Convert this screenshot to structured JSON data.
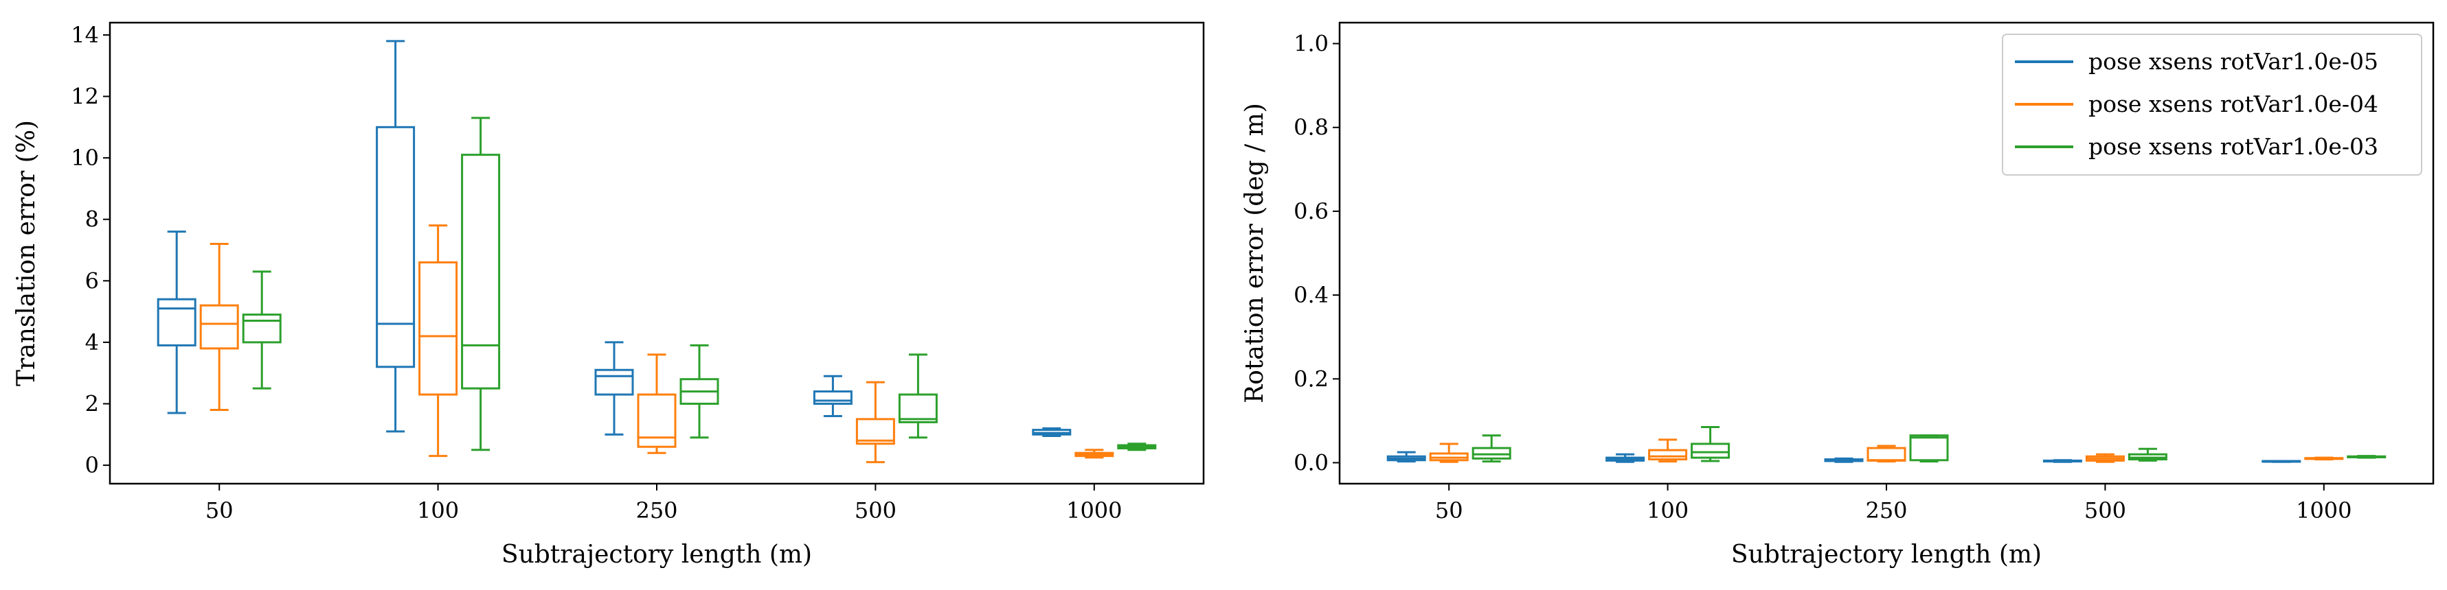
{
  "chart_data": [
    {
      "type": "box",
      "xlabel": "Subtrajectory length (m)",
      "ylabel": "Translation error (%)",
      "ylim": [
        -0.6,
        14.4
      ],
      "yticks": [
        0,
        2,
        4,
        6,
        8,
        10,
        12,
        14
      ],
      "categories": [
        "50",
        "100",
        "250",
        "500",
        "1000"
      ],
      "series": [
        {
          "name": "pose xsens rotVar1.0e-05",
          "boxes": [
            {
              "wlo": 1.7,
              "q1": 3.9,
              "med": 5.1,
              "q3": 5.4,
              "whi": 7.6
            },
            {
              "wlo": 1.1,
              "q1": 3.2,
              "med": 4.6,
              "q3": 11.0,
              "whi": 13.8
            },
            {
              "wlo": 1.0,
              "q1": 2.3,
              "med": 2.9,
              "q3": 3.1,
              "whi": 4.0
            },
            {
              "wlo": 1.6,
              "q1": 2.0,
              "med": 2.1,
              "q3": 2.4,
              "whi": 2.9
            },
            {
              "wlo": 0.95,
              "q1": 1.0,
              "med": 1.05,
              "q3": 1.15,
              "whi": 1.2
            }
          ]
        },
        {
          "name": "pose xsens rotVar1.0e-04",
          "boxes": [
            {
              "wlo": 1.8,
              "q1": 3.8,
              "med": 4.6,
              "q3": 5.2,
              "whi": 7.2
            },
            {
              "wlo": 0.3,
              "q1": 2.3,
              "med": 4.2,
              "q3": 6.6,
              "whi": 7.8
            },
            {
              "wlo": 0.4,
              "q1": 0.6,
              "med": 0.9,
              "q3": 2.3,
              "whi": 3.6
            },
            {
              "wlo": 0.1,
              "q1": 0.7,
              "med": 0.8,
              "q3": 1.5,
              "whi": 2.7
            },
            {
              "wlo": 0.25,
              "q1": 0.3,
              "med": 0.35,
              "q3": 0.4,
              "whi": 0.5
            }
          ]
        },
        {
          "name": "pose xsens rotVar1.0e-03",
          "boxes": [
            {
              "wlo": 2.5,
              "q1": 4.0,
              "med": 4.7,
              "q3": 4.9,
              "whi": 6.3
            },
            {
              "wlo": 0.5,
              "q1": 2.5,
              "med": 3.9,
              "q3": 10.1,
              "whi": 11.3
            },
            {
              "wlo": 0.9,
              "q1": 2.0,
              "med": 2.4,
              "q3": 2.8,
              "whi": 3.9
            },
            {
              "wlo": 0.9,
              "q1": 1.4,
              "med": 1.5,
              "q3": 2.3,
              "whi": 3.6
            },
            {
              "wlo": 0.5,
              "q1": 0.55,
              "med": 0.6,
              "q3": 0.65,
              "whi": 0.7
            }
          ]
        }
      ]
    },
    {
      "type": "box",
      "xlabel": "Subtrajectory length (m)",
      "ylabel": "Rotation error (deg / m)",
      "ylim": [
        -0.05,
        1.05
      ],
      "yticks": [
        0.0,
        0.2,
        0.4,
        0.6,
        0.8,
        1.0
      ],
      "categories": [
        "50",
        "100",
        "250",
        "500",
        "1000"
      ],
      "legend": {
        "position": "upper right"
      },
      "series": [
        {
          "name": "pose xsens rotVar1.0e-05",
          "boxes": [
            {
              "wlo": 0.003,
              "q1": 0.006,
              "med": 0.01,
              "q3": 0.015,
              "whi": 0.025
            },
            {
              "wlo": 0.002,
              "q1": 0.005,
              "med": 0.008,
              "q3": 0.012,
              "whi": 0.02
            },
            {
              "wlo": 0.002,
              "q1": 0.004,
              "med": 0.006,
              "q3": 0.008,
              "whi": 0.01
            },
            {
              "wlo": 0.002,
              "q1": 0.003,
              "med": 0.004,
              "q3": 0.005,
              "whi": 0.006
            },
            {
              "wlo": 0.002,
              "q1": 0.003,
              "med": 0.003,
              "q3": 0.004,
              "whi": 0.004
            }
          ]
        },
        {
          "name": "pose xsens rotVar1.0e-04",
          "boxes": [
            {
              "wlo": 0.002,
              "q1": 0.006,
              "med": 0.012,
              "q3": 0.022,
              "whi": 0.045
            },
            {
              "wlo": 0.003,
              "q1": 0.008,
              "med": 0.015,
              "q3": 0.03,
              "whi": 0.055
            },
            {
              "wlo": 0.003,
              "q1": 0.005,
              "med": 0.006,
              "q3": 0.035,
              "whi": 0.04
            },
            {
              "wlo": 0.002,
              "q1": 0.005,
              "med": 0.01,
              "q3": 0.015,
              "whi": 0.02
            },
            {
              "wlo": 0.008,
              "q1": 0.009,
              "med": 0.01,
              "q3": 0.011,
              "whi": 0.012
            }
          ]
        },
        {
          "name": "pose xsens rotVar1.0e-03",
          "boxes": [
            {
              "wlo": 0.003,
              "q1": 0.01,
              "med": 0.02,
              "q3": 0.035,
              "whi": 0.065
            },
            {
              "wlo": 0.004,
              "q1": 0.012,
              "med": 0.025,
              "q3": 0.045,
              "whi": 0.085
            },
            {
              "wlo": 0.003,
              "q1": 0.006,
              "med": 0.06,
              "q3": 0.065,
              "whi": 0.065
            },
            {
              "wlo": 0.005,
              "q1": 0.008,
              "med": 0.012,
              "q3": 0.02,
              "whi": 0.033
            },
            {
              "wlo": 0.012,
              "q1": 0.013,
              "med": 0.014,
              "q3": 0.015,
              "whi": 0.016
            }
          ]
        }
      ]
    }
  ],
  "colors": {
    "series": [
      "#1f77b4",
      "#ff7f0e",
      "#2ca02c"
    ],
    "axis": "#000000"
  }
}
